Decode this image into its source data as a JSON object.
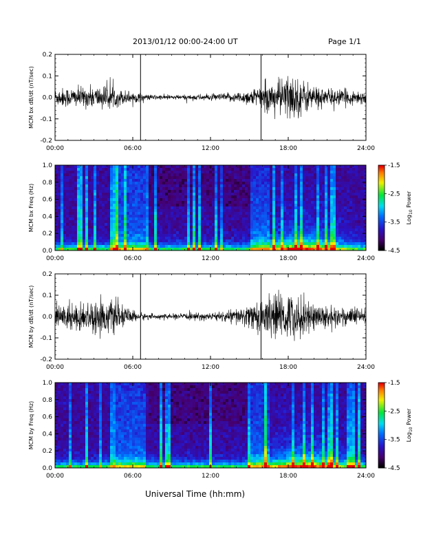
{
  "header": {
    "date_label": "2013/01/12  00:00-24:00 UT",
    "page_label": "Page 1/1"
  },
  "footer": {
    "xlabel": "Universal Time (hh:mm)"
  },
  "colorbar": {
    "label": "Log",
    "label_sub": "10",
    "label_suffix": " Power",
    "ticks": [
      "-1.5",
      "-2.5",
      "-3.5",
      "-4.5"
    ],
    "range": [
      -4.5,
      -1.5
    ]
  },
  "chart_data": [
    {
      "type": "line",
      "ylabel": "MCM bx dB/dt (nT/sec)",
      "xlim": [
        0,
        24
      ],
      "ylim": [
        -0.2,
        0.2
      ],
      "xticks": [
        "00:00",
        "06:00",
        "12:00",
        "18:00",
        "24:00"
      ],
      "yticks": [
        "0.2",
        "0.1",
        "0.0",
        "-0.1",
        "-0.2"
      ],
      "markers_hours": [
        6.6,
        15.9
      ],
      "envelope": {
        "hours": [
          0,
          1,
          2,
          3,
          4,
          5,
          6,
          7,
          8,
          9,
          10,
          11,
          12,
          13,
          14,
          15,
          16,
          17,
          18,
          19,
          20,
          21,
          22,
          23,
          24
        ],
        "amplitude": [
          0.045,
          0.05,
          0.05,
          0.055,
          0.06,
          0.04,
          0.03,
          0.015,
          0.012,
          0.012,
          0.012,
          0.015,
          0.015,
          0.02,
          0.025,
          0.04,
          0.06,
          0.08,
          0.12,
          0.09,
          0.06,
          0.045,
          0.04,
          0.035,
          0.035
        ]
      }
    },
    {
      "type": "heatmap",
      "ylabel": "MCM bx Freq (Hz)",
      "xlim": [
        0,
        24
      ],
      "ylim": [
        0,
        1.0
      ],
      "xticks": [
        "00:00",
        "06:00",
        "12:00",
        "18:00",
        "24:00"
      ],
      "yticks": [
        "1.0",
        "0.8",
        "0.6",
        "0.4",
        "0.2",
        "0.0"
      ],
      "value_range": [
        -4.5,
        -1.5
      ]
    },
    {
      "type": "line",
      "ylabel": "MCM by dB/dt (nT/sec)",
      "xlim": [
        0,
        24
      ],
      "ylim": [
        -0.2,
        0.2
      ],
      "xticks": [
        "00:00",
        "06:00",
        "12:00",
        "18:00",
        "24:00"
      ],
      "yticks": [
        "0.2",
        "0.1",
        "0.0",
        "-0.1",
        "-0.2"
      ],
      "markers_hours": [
        6.6,
        15.9
      ],
      "envelope": {
        "hours": [
          0,
          1,
          2,
          3,
          4,
          5,
          6,
          7,
          8,
          9,
          10,
          11,
          12,
          13,
          14,
          15,
          16,
          17,
          18,
          19,
          20,
          21,
          22,
          23,
          24
        ],
        "amplitude": [
          0.06,
          0.07,
          0.07,
          0.08,
          0.09,
          0.06,
          0.03,
          0.015,
          0.012,
          0.012,
          0.015,
          0.018,
          0.02,
          0.025,
          0.04,
          0.06,
          0.09,
          0.11,
          0.12,
          0.1,
          0.07,
          0.06,
          0.05,
          0.045,
          0.04
        ]
      }
    },
    {
      "type": "heatmap",
      "ylabel": "MCM by Freq (Hz)",
      "xlim": [
        0,
        24
      ],
      "ylim": [
        0,
        1.0
      ],
      "xticks": [
        "00:00",
        "06:00",
        "12:00",
        "18:00",
        "24:00"
      ],
      "yticks": [
        "1.0",
        "0.8",
        "0.6",
        "0.4",
        "0.2",
        "0.0"
      ],
      "value_range": [
        -4.5,
        -1.5
      ]
    }
  ]
}
